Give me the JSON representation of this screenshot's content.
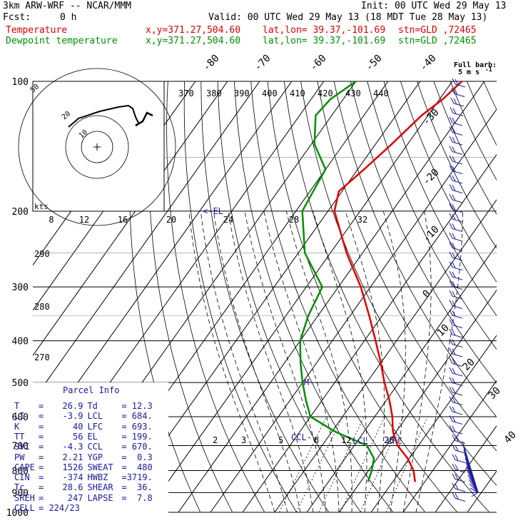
{
  "header": {
    "model": "3km ARW-WRF -- NCAR/MMM",
    "init": "Init: 00 UTC Wed 29 May 13",
    "fcst_label": "Fcst:",
    "fcst_value": "0 h",
    "valid": "Valid: 00 UTC Wed 29 May 13 (18 MDT Tue 28 May 13)"
  },
  "legend": {
    "temperature": {
      "name": "Temperature",
      "xy": "x,y=371.27,504.60",
      "latlon": "lat,lon= 39.37,-101.69",
      "stn": "stn=GLD ,72465",
      "color": "#e00000"
    },
    "dewpoint": {
      "name": "Dewpoint temperature",
      "xy": "x,y=371.27,504.60",
      "latlon": "lat,lon= 39.37,-101.69",
      "stn": "stn=GLD ,72465",
      "color": "#009000"
    }
  },
  "barb_legend": {
    "line1": "Full barb:",
    "line2": "5 m s",
    "superscript": "-1"
  },
  "hodograph": {
    "kts_label": "kts",
    "ring_labels": [
      "10",
      "20",
      "50"
    ],
    "speed_ticks": [
      "8",
      "12",
      "16",
      "20",
      "24",
      "28",
      "32"
    ]
  },
  "chart_data": {
    "type": "line",
    "chart_kind": "skew-T log-p",
    "y_axis": {
      "label": "",
      "scale": "log",
      "ticks": [
        100,
        200,
        300,
        400,
        500,
        600,
        700,
        800,
        900,
        1000
      ],
      "range": [
        1000,
        100
      ]
    },
    "isotherm_labels": [
      "-80",
      "-70",
      "-60",
      "-50",
      "-40",
      "-30",
      "-20",
      "-10",
      "0",
      "10",
      "20",
      "30",
      "40"
    ],
    "theta_e_labels": [
      "370",
      "380",
      "390",
      "400",
      "410",
      "420",
      "430",
      "440"
    ],
    "theta_labels": [
      "290",
      "280",
      "270"
    ],
    "mixing_ratio_labels": [
      "2",
      "3",
      "5",
      "8",
      "12",
      "20"
    ],
    "annotations": {
      "el": "EL",
      "ccl": "CCL",
      "lcl": "LCL",
      "lfc": "LFC",
      "m": "M"
    },
    "series": [
      {
        "name": "Temperature",
        "color": "#e00000",
        "p": [
          850,
          800,
          750,
          700,
          650,
          600,
          550,
          500,
          450,
          400,
          350,
          300,
          250,
          200,
          180,
          160,
          140,
          120,
          110,
          100
        ],
        "t": [
          27,
          24,
          19.5,
          13.5,
          9,
          5.5,
          1,
          -4.5,
          -10,
          -16.5,
          -24,
          -33,
          -45,
          -58,
          -61,
          -58,
          -55,
          -52,
          -49,
          -47
        ]
      },
      {
        "name": "Dewpoint temperature",
        "color": "#009000",
        "p": [
          850,
          800,
          750,
          700,
          650,
          600,
          550,
          500,
          450,
          400,
          350,
          300,
          250,
          200,
          180,
          160,
          140,
          120,
          110,
          100
        ],
        "t": [
          12.3,
          11,
          9,
          4,
          -9,
          -20,
          -25,
          -30,
          -35,
          -40,
          -43,
          -45,
          -58,
          -68,
          -69,
          -70,
          -79,
          -85,
          -84,
          -80
        ]
      }
    ],
    "wind_barbs_present": true
  },
  "parcel_info": {
    "title": "Parcel Info",
    "rows": [
      {
        "l1": "T",
        "v1": "26.9",
        "l2": "Td",
        "v2": "12.3"
      },
      {
        "l1": "LI",
        "v1": "-3.9",
        "l2": "LCL",
        "v2": "684."
      },
      {
        "l1": "K",
        "v1": "40",
        "l2": "LFC",
        "v2": "693."
      },
      {
        "l1": "TT",
        "v1": "56",
        "l2": "EL",
        "v2": "199."
      },
      {
        "l1": "SVI",
        "v1": "-4.3",
        "l2": "CCL",
        "v2": "670."
      },
      {
        "l1": "PW",
        "v1": "2.21",
        "l2": "YGP",
        "v2": "0.3"
      },
      {
        "l1": "CAPE",
        "v1": "1526",
        "l2": "SWEAT",
        "v2": "480"
      },
      {
        "l1": "CIN",
        "v1": "-374",
        "l2": "HWBZ",
        "v2": "3719."
      },
      {
        "l1": "Tc",
        "v1": "28.6",
        "l2": "SHEAR",
        "v2": "36."
      },
      {
        "l1": "SREH",
        "v1": "247",
        "l2": "LAPSE",
        "v2": "7.8"
      },
      {
        "l1": "CELL",
        "v1": "224/23",
        "l2": "",
        "v2": ""
      }
    ]
  }
}
